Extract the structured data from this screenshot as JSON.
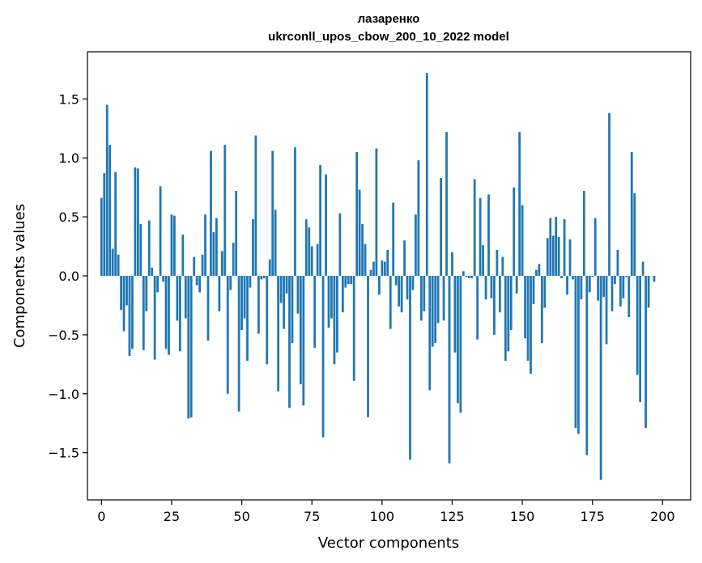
{
  "chart_data": {
    "type": "bar",
    "title": "лазаренко",
    "subtitle": "ukrconll_upos_cbow_200_10_2022 model",
    "xlabel": "Vector components",
    "ylabel": "Components values",
    "xlim": [
      -5,
      210
    ],
    "ylim": [
      -1.9,
      1.9
    ],
    "xticks": [
      0,
      25,
      50,
      75,
      100,
      125,
      150,
      175,
      200
    ],
    "xtick_labels": [
      "0",
      "25",
      "50",
      "75",
      "100",
      "125",
      "150",
      "175",
      "200"
    ],
    "yticks": [
      -1.5,
      -1.0,
      -0.5,
      0.0,
      0.5,
      1.0,
      1.5
    ],
    "ytick_labels": [
      "−1.5",
      "−1.0",
      "−0.5",
      "0.0",
      "0.5",
      "1.0",
      "1.5"
    ],
    "bar_color": "#1f77b4",
    "grid": false,
    "values": [
      0.66,
      0.87,
      1.45,
      1.11,
      0.23,
      0.88,
      0.18,
      -0.29,
      -0.47,
      -0.25,
      -0.68,
      -0.62,
      0.92,
      0.91,
      0.44,
      -0.63,
      -0.3,
      0.47,
      0.07,
      -0.71,
      -0.14,
      0.76,
      -0.05,
      -0.62,
      -0.67,
      0.52,
      0.51,
      -0.38,
      -0.64,
      0.35,
      -0.36,
      -1.21,
      -1.2,
      0.16,
      -0.08,
      -0.14,
      0.18,
      0.52,
      -0.55,
      1.06,
      0.37,
      0.49,
      -0.3,
      0.21,
      1.11,
      -1.0,
      -0.12,
      0.28,
      0.72,
      -1.15,
      -0.46,
      -0.36,
      -0.72,
      -0.1,
      0.48,
      1.19,
      -0.49,
      -0.03,
      -0.02,
      -0.75,
      0.14,
      1.06,
      0.56,
      -0.98,
      -0.23,
      -0.45,
      -0.15,
      -1.12,
      -0.57,
      1.09,
      -0.32,
      -0.92,
      -1.1,
      0.48,
      0.41,
      0.25,
      -0.61,
      0.27,
      0.94,
      -1.37,
      0.86,
      -0.44,
      -0.36,
      -0.75,
      -0.65,
      0.53,
      -0.31,
      -0.1,
      -0.07,
      -0.07,
      -0.89,
      1.05,
      0.73,
      0.44,
      0.27,
      -1.2,
      0.05,
      0.12,
      1.08,
      -0.16,
      0.13,
      0.12,
      0.22,
      -0.45,
      0.62,
      -0.08,
      -0.26,
      -0.31,
      0.3,
      -0.2,
      -1.56,
      -0.12,
      0.52,
      0.98,
      -0.38,
      -0.3,
      1.72,
      -0.97,
      -0.6,
      -0.57,
      -0.4,
      0.83,
      -0.38,
      1.22,
      -1.59,
      0.2,
      -0.65,
      -1.08,
      -1.16,
      0.04,
      -0.01,
      -0.02,
      -0.02,
      0.82,
      -0.54,
      0.66,
      0.26,
      -0.2,
      0.69,
      -0.19,
      -0.5,
      0.22,
      -0.31,
      0.16,
      -0.72,
      -0.64,
      -0.46,
      0.75,
      -0.15,
      1.22,
      0.6,
      -0.53,
      -0.72,
      -0.83,
      -0.24,
      0.05,
      0.1,
      -0.57,
      -0.27,
      0.32,
      0.49,
      0.34,
      0.5,
      0.33,
      -0.02,
      0.48,
      -0.16,
      0.31,
      -0.03,
      -1.29,
      -1.34,
      -0.2,
      0.72,
      -1.52,
      -0.14,
      -0.01,
      0.49,
      -0.21,
      -1.73,
      -0.18,
      -0.58,
      1.38,
      -0.3,
      -0.07,
      0.22,
      -0.26,
      -0.19,
      -0.01,
      -0.35,
      1.05,
      0.7,
      -0.84,
      -1.07,
      0.12,
      -1.29,
      -0.27,
      0.0,
      -0.05
    ]
  }
}
